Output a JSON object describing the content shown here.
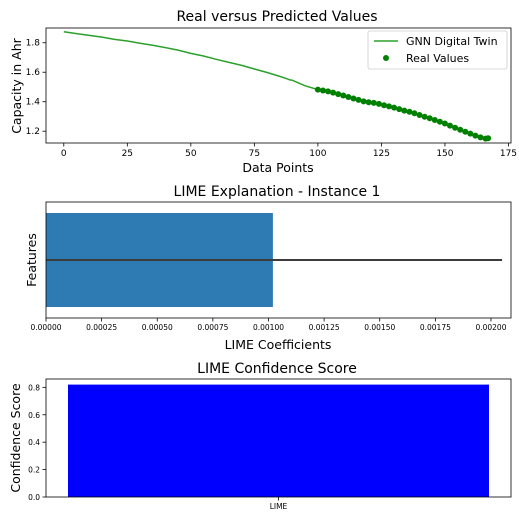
{
  "chart_data": [
    {
      "type": "line",
      "title": "Real versus Predicted Values",
      "xlabel": "Data Points",
      "ylabel": "Capacity in Ahr",
      "xlim": [
        -7,
        176
      ],
      "ylim": [
        1.12,
        1.9
      ],
      "xticks": [
        0,
        25,
        50,
        75,
        100,
        125,
        150,
        175
      ],
      "yticks": [
        1.2,
        1.4,
        1.6,
        1.8
      ],
      "legend_position": "top-right",
      "series": [
        {
          "name": "GNN Digital Twin",
          "kind": "line",
          "color": "#2ca02c",
          "points": [
            [
              0,
              1.875
            ],
            [
              5,
              1.862
            ],
            [
              10,
              1.85
            ],
            [
              15,
              1.838
            ],
            [
              20,
              1.823
            ],
            [
              25,
              1.812
            ],
            [
              30,
              1.797
            ],
            [
              35,
              1.783
            ],
            [
              40,
              1.767
            ],
            [
              45,
              1.75
            ],
            [
              50,
              1.728
            ],
            [
              55,
              1.71
            ],
            [
              60,
              1.688
            ],
            [
              65,
              1.667
            ],
            [
              70,
              1.646
            ],
            [
              75,
              1.622
            ],
            [
              80,
              1.598
            ],
            [
              85,
              1.572
            ],
            [
              88,
              1.555
            ],
            [
              89,
              1.548
            ],
            [
              90,
              1.545
            ],
            [
              91,
              1.538
            ],
            [
              92,
              1.53
            ],
            [
              95,
              1.508
            ],
            [
              100,
              1.482
            ],
            [
              105,
              1.462
            ],
            [
              110,
              1.44
            ],
            [
              115,
              1.418
            ],
            [
              120,
              1.398
            ],
            [
              125,
              1.383
            ],
            [
              130,
              1.36
            ],
            [
              135,
              1.337
            ],
            [
              140,
              1.31
            ],
            [
              145,
              1.282
            ],
            [
              150,
              1.252
            ],
            [
              155,
              1.22
            ],
            [
              160,
              1.186
            ],
            [
              165,
              1.16
            ],
            [
              167,
              1.155
            ]
          ]
        },
        {
          "name": "Real Values",
          "kind": "scatter",
          "color": "#008000",
          "points": [
            [
              100,
              1.482
            ],
            [
              102,
              1.476
            ],
            [
              104,
              1.47
            ],
            [
              106,
              1.462
            ],
            [
              108,
              1.452
            ],
            [
              110,
              1.442
            ],
            [
              112,
              1.432
            ],
            [
              114,
              1.422
            ],
            [
              116,
              1.412
            ],
            [
              118,
              1.402
            ],
            [
              120,
              1.397
            ],
            [
              122,
              1.392
            ],
            [
              124,
              1.385
            ],
            [
              126,
              1.376
            ],
            [
              128,
              1.368
            ],
            [
              130,
              1.36
            ],
            [
              132,
              1.35
            ],
            [
              134,
              1.34
            ],
            [
              136,
              1.332
            ],
            [
              138,
              1.322
            ],
            [
              140,
              1.31
            ],
            [
              142,
              1.298
            ],
            [
              144,
              1.288
            ],
            [
              146,
              1.276
            ],
            [
              148,
              1.264
            ],
            [
              150,
              1.252
            ],
            [
              152,
              1.238
            ],
            [
              154,
              1.224
            ],
            [
              156,
              1.21
            ],
            [
              158,
              1.196
            ],
            [
              160,
              1.184
            ],
            [
              162,
              1.17
            ],
            [
              164,
              1.158
            ],
            [
              166,
              1.15
            ],
            [
              167,
              1.152
            ]
          ]
        }
      ]
    },
    {
      "type": "bar",
      "orientation": "horizontal",
      "title": "LIME Explanation - Instance 1",
      "xlabel": "LIME Coefficients",
      "ylabel": "Features",
      "xlim": [
        0,
        0.00209
      ],
      "xticks": [
        "0.00000",
        "0.00025",
        "0.00050",
        "0.00075",
        "0.00100",
        "0.00125",
        "0.00150",
        "0.00175",
        "0.00200"
      ],
      "value": 0.00102,
      "error_line_end": 0.00205,
      "bar_color": "#2e7bb4",
      "line_color": "#3c3c3c"
    },
    {
      "type": "bar",
      "title": "LIME Confidence Score",
      "xlabel": "",
      "ylabel": "Confidence Score",
      "categories": [
        "LIME"
      ],
      "values": [
        0.82
      ],
      "ylim": [
        0,
        0.861
      ],
      "yticks": [
        "0.0",
        "0.2",
        "0.4",
        "0.6",
        "0.8"
      ],
      "bar_color": "#0000ff"
    }
  ]
}
